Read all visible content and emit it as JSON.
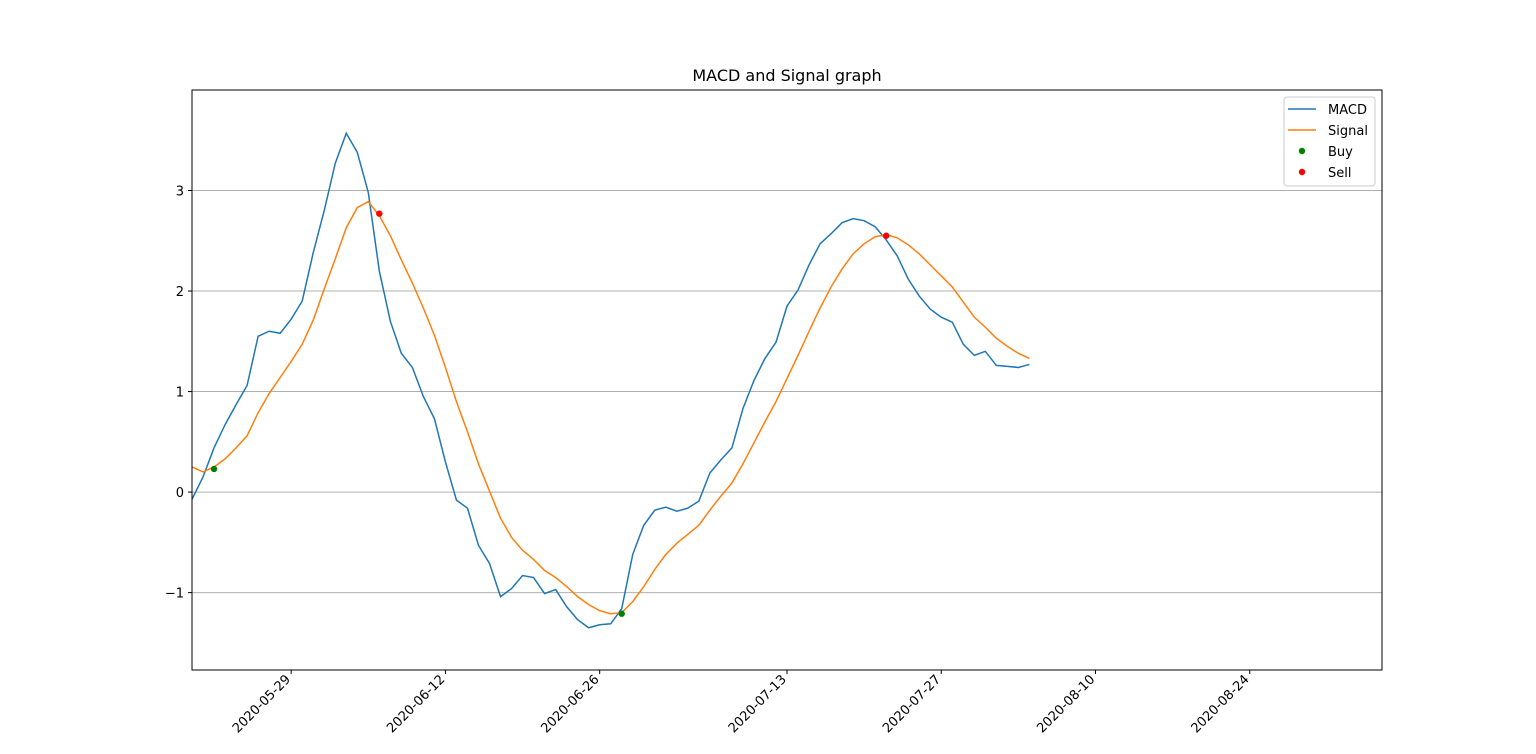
{
  "chart_data": {
    "type": "line",
    "title": "MACD and Signal graph",
    "xlabel": "",
    "ylabel": "",
    "x_start": "2020-05-20",
    "x_end": "2020-09-05",
    "xlim": [
      "2020-05-20",
      "2020-09-05"
    ],
    "ylim": [
      -1.77,
      4.0
    ],
    "grid": "y",
    "legend_position": "top-right",
    "x_ticks": [
      "2020-05-29",
      "2020-06-12",
      "2020-06-26",
      "2020-07-13",
      "2020-07-27",
      "2020-08-10",
      "2020-08-24"
    ],
    "y_ticks": [
      {
        "value": 3,
        "label": "3"
      },
      {
        "value": 2,
        "label": "2"
      },
      {
        "value": 1,
        "label": "1"
      },
      {
        "value": 0,
        "label": "0"
      },
      {
        "value": -1,
        "label": "−1"
      }
    ],
    "series": [
      {
        "name": "MACD",
        "color": "#1f77b4",
        "points": [
          [
            "2020-05-20",
            -0.07
          ],
          [
            "2020-05-21",
            0.15
          ],
          [
            "2020-05-22",
            0.44
          ],
          [
            "2020-05-23",
            0.67
          ],
          [
            "2020-05-24",
            0.87
          ],
          [
            "2020-05-25",
            1.06
          ],
          [
            "2020-05-26",
            1.55
          ],
          [
            "2020-05-27",
            1.6
          ],
          [
            "2020-05-28",
            1.58
          ],
          [
            "2020-05-29",
            1.72
          ],
          [
            "2020-05-30",
            1.9
          ],
          [
            "2020-05-31",
            2.38
          ],
          [
            "2020-06-01",
            2.8
          ],
          [
            "2020-06-02",
            3.27
          ],
          [
            "2020-06-03",
            3.57
          ],
          [
            "2020-06-04",
            3.38
          ],
          [
            "2020-06-05",
            2.98
          ],
          [
            "2020-06-06",
            2.2
          ],
          [
            "2020-06-07",
            1.7
          ],
          [
            "2020-06-08",
            1.38
          ],
          [
            "2020-06-09",
            1.24
          ],
          [
            "2020-06-10",
            0.95
          ],
          [
            "2020-06-11",
            0.73
          ],
          [
            "2020-06-12",
            0.3
          ],
          [
            "2020-06-13",
            -0.08
          ],
          [
            "2020-06-14",
            -0.16
          ],
          [
            "2020-06-15",
            -0.53
          ],
          [
            "2020-06-16",
            -0.71
          ],
          [
            "2020-06-17",
            -1.04
          ],
          [
            "2020-06-18",
            -0.96
          ],
          [
            "2020-06-19",
            -0.83
          ],
          [
            "2020-06-20",
            -0.85
          ],
          [
            "2020-06-21",
            -1.01
          ],
          [
            "2020-06-22",
            -0.97
          ],
          [
            "2020-06-23",
            -1.14
          ],
          [
            "2020-06-24",
            -1.27
          ],
          [
            "2020-06-25",
            -1.35
          ],
          [
            "2020-06-26",
            -1.32
          ],
          [
            "2020-06-27",
            -1.31
          ],
          [
            "2020-06-28",
            -1.16
          ],
          [
            "2020-06-29",
            -0.62
          ],
          [
            "2020-06-30",
            -0.33
          ],
          [
            "2020-07-01",
            -0.18
          ],
          [
            "2020-07-02",
            -0.15
          ],
          [
            "2020-07-03",
            -0.19
          ],
          [
            "2020-07-04",
            -0.16
          ],
          [
            "2020-07-05",
            -0.09
          ],
          [
            "2020-07-06",
            0.19
          ],
          [
            "2020-07-07",
            0.32
          ],
          [
            "2020-07-08",
            0.44
          ],
          [
            "2020-07-09",
            0.83
          ],
          [
            "2020-07-10",
            1.11
          ],
          [
            "2020-07-11",
            1.33
          ],
          [
            "2020-07-12",
            1.49
          ],
          [
            "2020-07-13",
            1.85
          ],
          [
            "2020-07-14",
            2.01
          ],
          [
            "2020-07-15",
            2.26
          ],
          [
            "2020-07-16",
            2.47
          ],
          [
            "2020-07-17",
            2.57
          ],
          [
            "2020-07-18",
            2.68
          ],
          [
            "2020-07-19",
            2.72
          ],
          [
            "2020-07-20",
            2.7
          ],
          [
            "2020-07-21",
            2.64
          ],
          [
            "2020-07-22",
            2.51
          ],
          [
            "2020-07-23",
            2.35
          ],
          [
            "2020-07-24",
            2.12
          ],
          [
            "2020-07-25",
            1.95
          ],
          [
            "2020-07-26",
            1.82
          ],
          [
            "2020-07-27",
            1.74
          ],
          [
            "2020-07-28",
            1.69
          ],
          [
            "2020-07-29",
            1.47
          ],
          [
            "2020-07-30",
            1.36
          ],
          [
            "2020-07-31",
            1.4
          ],
          [
            "2020-08-01",
            1.26
          ],
          [
            "2020-08-02",
            1.25
          ],
          [
            "2020-08-03",
            1.24
          ],
          [
            "2020-08-04",
            1.27
          ]
        ]
      },
      {
        "name": "Signal",
        "color": "#ff7f0e",
        "points": [
          [
            "2020-05-20",
            0.25
          ],
          [
            "2020-05-21",
            0.2
          ],
          [
            "2020-05-22",
            0.25
          ],
          [
            "2020-05-23",
            0.33
          ],
          [
            "2020-05-24",
            0.44
          ],
          [
            "2020-05-25",
            0.56
          ],
          [
            "2020-05-26",
            0.79
          ],
          [
            "2020-05-27",
            0.98
          ],
          [
            "2020-05-28",
            1.14
          ],
          [
            "2020-05-29",
            1.3
          ],
          [
            "2020-05-30",
            1.47
          ],
          [
            "2020-05-31",
            1.71
          ],
          [
            "2020-06-01",
            2.02
          ],
          [
            "2020-06-02",
            2.32
          ],
          [
            "2020-06-03",
            2.63
          ],
          [
            "2020-06-04",
            2.83
          ],
          [
            "2020-06-05",
            2.89
          ],
          [
            "2020-06-06",
            2.75
          ],
          [
            "2020-06-07",
            2.55
          ],
          [
            "2020-06-08",
            2.31
          ],
          [
            "2020-06-09",
            2.08
          ],
          [
            "2020-06-10",
            1.83
          ],
          [
            "2020-06-11",
            1.56
          ],
          [
            "2020-06-12",
            1.24
          ],
          [
            "2020-06-13",
            0.9
          ],
          [
            "2020-06-14",
            0.6
          ],
          [
            "2020-06-15",
            0.28
          ],
          [
            "2020-06-16",
            0.01
          ],
          [
            "2020-06-17",
            -0.26
          ],
          [
            "2020-06-18",
            -0.45
          ],
          [
            "2020-06-19",
            -0.58
          ],
          [
            "2020-06-20",
            -0.67
          ],
          [
            "2020-06-21",
            -0.78
          ],
          [
            "2020-06-22",
            -0.85
          ],
          [
            "2020-06-23",
            -0.94
          ],
          [
            "2020-06-24",
            -1.04
          ],
          [
            "2020-06-25",
            -1.12
          ],
          [
            "2020-06-26",
            -1.18
          ],
          [
            "2020-06-27",
            -1.21
          ],
          [
            "2020-06-28",
            -1.2
          ],
          [
            "2020-06-29",
            -1.09
          ],
          [
            "2020-06-30",
            -0.94
          ],
          [
            "2020-07-01",
            -0.77
          ],
          [
            "2020-07-02",
            -0.62
          ],
          [
            "2020-07-03",
            -0.51
          ],
          [
            "2020-07-04",
            -0.42
          ],
          [
            "2020-07-05",
            -0.33
          ],
          [
            "2020-07-06",
            -0.18
          ],
          [
            "2020-07-07",
            -0.04
          ],
          [
            "2020-07-08",
            0.09
          ],
          [
            "2020-07-09",
            0.28
          ],
          [
            "2020-07-10",
            0.49
          ],
          [
            "2020-07-11",
            0.7
          ],
          [
            "2020-07-12",
            0.9
          ],
          [
            "2020-07-13",
            1.13
          ],
          [
            "2020-07-14",
            1.36
          ],
          [
            "2020-07-15",
            1.6
          ],
          [
            "2020-07-16",
            1.83
          ],
          [
            "2020-07-17",
            2.04
          ],
          [
            "2020-07-18",
            2.22
          ],
          [
            "2020-07-19",
            2.37
          ],
          [
            "2020-07-20",
            2.47
          ],
          [
            "2020-07-21",
            2.54
          ],
          [
            "2020-07-22",
            2.56
          ],
          [
            "2020-07-23",
            2.53
          ],
          [
            "2020-07-24",
            2.46
          ],
          [
            "2020-07-25",
            2.37
          ],
          [
            "2020-07-26",
            2.26
          ],
          [
            "2020-07-27",
            2.15
          ],
          [
            "2020-07-28",
            2.04
          ],
          [
            "2020-07-29",
            1.89
          ],
          [
            "2020-07-30",
            1.74
          ],
          [
            "2020-07-31",
            1.64
          ],
          [
            "2020-08-01",
            1.53
          ],
          [
            "2020-08-02",
            1.45
          ],
          [
            "2020-08-03",
            1.38
          ],
          [
            "2020-08-04",
            1.33
          ]
        ]
      },
      {
        "name": "Buy",
        "color": "#008000",
        "style": "scatter",
        "points": [
          [
            "2020-05-22",
            0.23
          ],
          [
            "2020-06-28",
            -1.21
          ]
        ]
      },
      {
        "name": "Sell",
        "color": "#ff0000",
        "style": "scatter",
        "points": [
          [
            "2020-06-06",
            2.77
          ],
          [
            "2020-07-22",
            2.55
          ]
        ]
      }
    ]
  }
}
